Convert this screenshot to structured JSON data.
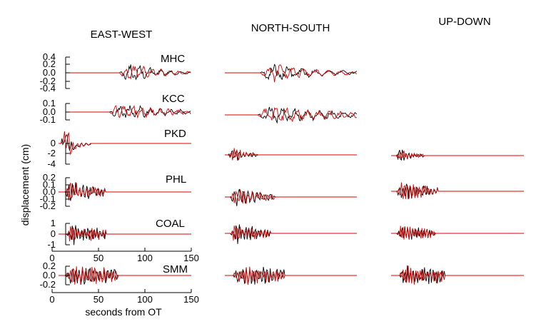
{
  "chart_data": {
    "type": "line",
    "columns": [
      "EAST-WEST",
      "NORTH-SOUTH",
      "UP-DOWN"
    ],
    "ylabel": "displacement (cm)",
    "xlabel": "seconds from OT",
    "x_ticks": [
      "0",
      "50",
      "100",
      "150"
    ],
    "xlim": [
      0,
      150
    ],
    "series_colors": {
      "observed": "#000000",
      "synthetic": "#e00000"
    },
    "stations": [
      {
        "name": "MHC",
        "ytick_labels": [
          "0.4",
          "0.2",
          "0.0",
          "-0.2",
          "-0.4"
        ],
        "ylim": [
          -0.45,
          0.45
        ],
        "components": {
          "ew": {
            "start": 0,
            "end": 150
          },
          "ns": {
            "start": 0,
            "end": 150
          }
        }
      },
      {
        "name": "KCC",
        "ytick_labels": [
          "0.1",
          "0.0",
          "-0.1"
        ],
        "ylim": [
          -0.15,
          0.12
        ],
        "components": {
          "ew": {
            "start": 0,
            "end": 150
          },
          "ns": {
            "start": 0,
            "end": 150
          }
        }
      },
      {
        "name": "PKD",
        "ytick_labels": [
          "0",
          "-2",
          "-4"
        ],
        "ylim": [
          -4.2,
          0.6
        ],
        "components": {
          "ew": {
            "start": 0,
            "end": 150
          },
          "ns": {
            "start": 0,
            "end": 150
          },
          "ud": {
            "start": 0,
            "end": 150
          }
        }
      },
      {
        "name": "PHL",
        "ytick_labels": [
          "0.2",
          "0.1",
          "0.0",
          "-0.1",
          "-0.2"
        ],
        "ylim": [
          -0.22,
          0.22
        ],
        "components": {
          "ew": {
            "start": 0,
            "end": 150
          },
          "ns": {
            "start": 0,
            "end": 150
          },
          "ud": {
            "start": 0,
            "end": 150
          }
        }
      },
      {
        "name": "COAL",
        "ytick_labels": [
          "1",
          "0",
          "-1"
        ],
        "ylim": [
          -1.3,
          1.3
        ],
        "components": {
          "ew": {
            "start": 0,
            "end": 150
          },
          "ns": {
            "start": 0,
            "end": 150
          },
          "ud": {
            "start": 0,
            "end": 150
          }
        }
      },
      {
        "name": "SMM",
        "ytick_labels": [
          "0.2",
          "0.0",
          "-0.2"
        ],
        "ylim": [
          -0.26,
          0.26
        ],
        "components": {
          "ew": {
            "start": 0,
            "end": 65
          },
          "ns": {
            "start": 0,
            "end": 150
          },
          "ud": {
            "start": 0,
            "end": 150
          }
        }
      }
    ]
  }
}
